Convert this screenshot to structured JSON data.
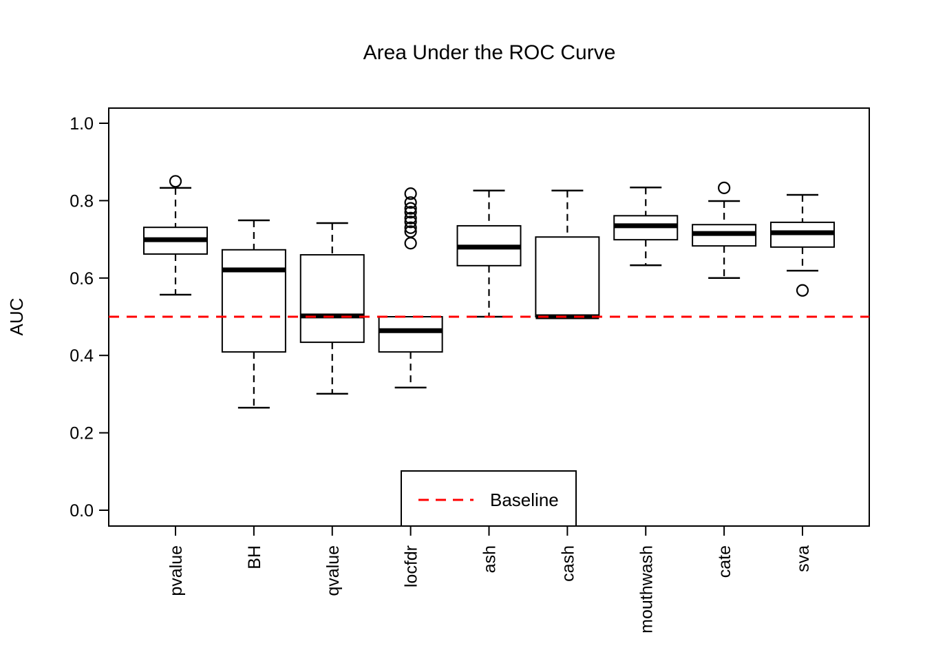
{
  "title": "Area Under the ROC Curve",
  "ylabel": "AUC",
  "legend": {
    "label": "Baseline"
  },
  "colors": {
    "baseline": "#FF0000",
    "box_stroke": "#000000",
    "box_fill": "#FFFFFF",
    "background": "#FFFFFF"
  },
  "chart_data": {
    "type": "boxplot",
    "title": "Area Under the ROC Curve",
    "xlabel": "",
    "ylabel": "AUC",
    "ylim": [
      -0.02,
      1.04
    ],
    "yticks": [
      0.0,
      0.2,
      0.4,
      0.6,
      0.8,
      1.0
    ],
    "grid": false,
    "legend_position": "bottom-center",
    "baseline": {
      "value": 0.5,
      "label": "Baseline",
      "color": "#FF0000",
      "style": "dashed"
    },
    "categories": [
      "pvalue",
      "BH",
      "qvalue",
      "locfdr",
      "ash",
      "cash",
      "mouthwash",
      "cate",
      "sva"
    ],
    "series": [
      {
        "name": "pvalue",
        "whisker_low": 0.557,
        "q1": 0.662,
        "median": 0.699,
        "q3": 0.731,
        "whisker_high": 0.833,
        "outliers": [
          0.85
        ]
      },
      {
        "name": "BH",
        "whisker_low": 0.265,
        "q1": 0.409,
        "median": 0.621,
        "q3": 0.673,
        "whisker_high": 0.749,
        "outliers": []
      },
      {
        "name": "qvalue",
        "whisker_low": 0.301,
        "q1": 0.434,
        "median": 0.502,
        "q3": 0.66,
        "whisker_high": 0.742,
        "outliers": []
      },
      {
        "name": "locfdr",
        "whisker_low": 0.317,
        "q1": 0.409,
        "median": 0.464,
        "q3": 0.5,
        "whisker_high": 0.5,
        "outliers": [
          0.69,
          0.72,
          0.73,
          0.745,
          0.755,
          0.77,
          0.78,
          0.795,
          0.818
        ]
      },
      {
        "name": "ash",
        "whisker_low": 0.5,
        "q1": 0.632,
        "median": 0.68,
        "q3": 0.735,
        "whisker_high": 0.826,
        "outliers": []
      },
      {
        "name": "cash",
        "whisker_low": 0.5,
        "q1": 0.5,
        "median": 0.5,
        "q3": 0.706,
        "whisker_high": 0.826,
        "outliers": []
      },
      {
        "name": "mouthwash",
        "whisker_low": 0.633,
        "q1": 0.699,
        "median": 0.735,
        "q3": 0.761,
        "whisker_high": 0.834,
        "outliers": []
      },
      {
        "name": "cate",
        "whisker_low": 0.6,
        "q1": 0.683,
        "median": 0.715,
        "q3": 0.738,
        "whisker_high": 0.799,
        "outliers": [
          0.833
        ]
      },
      {
        "name": "sva",
        "whisker_low": 0.619,
        "q1": 0.68,
        "median": 0.717,
        "q3": 0.744,
        "whisker_high": 0.815,
        "outliers": [
          0.568
        ]
      }
    ]
  }
}
